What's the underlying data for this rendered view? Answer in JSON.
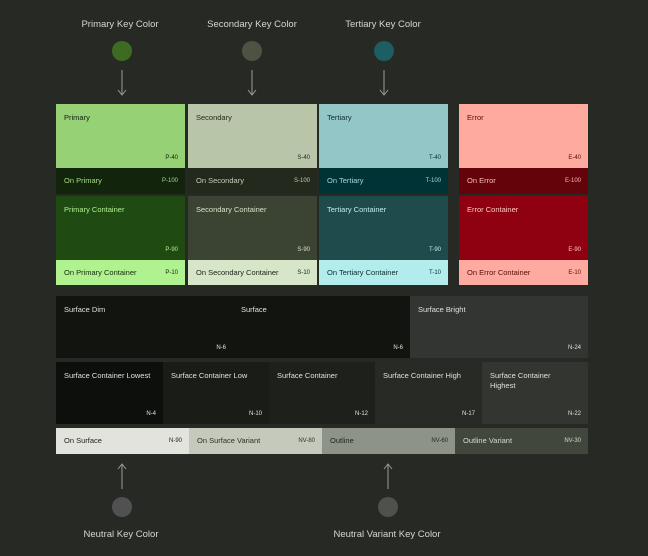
{
  "key_colors": {
    "primary": {
      "label": "Primary Key Color",
      "color": "#3e6b22"
    },
    "secondary": {
      "label": "Secondary Key Color",
      "color": "#4c5343"
    },
    "tertiary": {
      "label": "Tertiary Key Color",
      "color": "#1c5e61"
    },
    "neutral": {
      "label": "Neutral Key Color",
      "color": "#505150"
    },
    "neutral_variant": {
      "label": "Neutral Variant Key Color",
      "color": "#4f524c"
    }
  },
  "roles": {
    "primary": {
      "name": "Primary",
      "tone": "P-40",
      "bg": "#96d175",
      "fg": "#10200a"
    },
    "on_primary": {
      "name": "On Primary",
      "tone": "P-100",
      "bg": "#12240b",
      "fg": "#a5de84"
    },
    "primary_container": {
      "name": "Primary Container",
      "tone": "P-90",
      "bg": "#1f4a12",
      "fg": "#b2ee91"
    },
    "on_primary_container": {
      "name": "On Primary Container",
      "tone": "P-10",
      "bg": "#b0f190",
      "fg": "#14290b"
    },
    "secondary": {
      "name": "Secondary",
      "tone": "S-40",
      "bg": "#b8c5a9",
      "fg": "#23291d"
    },
    "on_secondary": {
      "name": "On Secondary",
      "tone": "S-100",
      "bg": "#23291d",
      "fg": "#c3cfb5"
    },
    "secondary_container": {
      "name": "Secondary Container",
      "tone": "S-90",
      "bg": "#3b4333",
      "fg": "#d6e3c8"
    },
    "on_secondary_container": {
      "name": "On Secondary Container",
      "tone": "S-10",
      "bg": "#d7e5c8",
      "fg": "#1b2114"
    },
    "tertiary": {
      "name": "Tertiary",
      "tone": "T-40",
      "bg": "#93c6c7",
      "fg": "#0b2e30"
    },
    "on_tertiary": {
      "name": "On Tertiary",
      "tone": "T-100",
      "bg": "#003336",
      "fg": "#a4d8d9"
    },
    "tertiary_container": {
      "name": "Tertiary Container",
      "tone": "T-90",
      "bg": "#1f4b4c",
      "fg": "#bfeced"
    },
    "on_tertiary_container": {
      "name": "On Tertiary Container",
      "tone": "T-10",
      "bg": "#b3eced",
      "fg": "#092b2d"
    },
    "error": {
      "name": "Error",
      "tone": "E-40",
      "bg": "#ffaa9f",
      "fg": "#5a0c08"
    },
    "on_error": {
      "name": "On Error",
      "tone": "E-100",
      "bg": "#65030b",
      "fg": "#ffbdb3"
    },
    "error_container": {
      "name": "Error Container",
      "tone": "E-90",
      "bg": "#8f0011",
      "fg": "#ffc9c2"
    },
    "on_error_container": {
      "name": "On Error Container",
      "tone": "E-10",
      "bg": "#ffaaa0",
      "fg": "#5a0c08"
    }
  },
  "surfaces": {
    "surface_dim": {
      "name": "Surface Dim",
      "tone": "N-6",
      "bg": "#121410",
      "fg": "#dfe3d8"
    },
    "surface": {
      "name": "Surface",
      "tone": "N-6",
      "bg": "#121410",
      "fg": "#dfe3d8"
    },
    "surface_bright": {
      "name": "Surface Bright",
      "tone": "N-24",
      "bg": "#333532",
      "fg": "#dfe3d8"
    },
    "container_lowest": {
      "name": "Surface Container Lowest",
      "tone": "N-4",
      "bg": "#0d0f0c",
      "fg": "#dfe3d8"
    },
    "container_low": {
      "name": "Surface Container Low",
      "tone": "N-10",
      "bg": "#1a1c18",
      "fg": "#dfe3d8"
    },
    "container": {
      "name": "Surface Container",
      "tone": "N-12",
      "bg": "#1e201c",
      "fg": "#dfe3d8"
    },
    "container_high": {
      "name": "Surface Container High",
      "tone": "N-17",
      "bg": "#282a26",
      "fg": "#dfe3d8"
    },
    "container_highest": {
      "name": "Surface Container Highest",
      "tone": "N-22",
      "bg": "#333531",
      "fg": "#dfe3d8"
    }
  },
  "bottom_row": {
    "on_surface": {
      "name": "On Surface",
      "tone": "N-90",
      "bg": "#e1e3dc",
      "fg": "#1c1e1a"
    },
    "on_surface_variant": {
      "name": "On Surface Variant",
      "tone": "NV-80",
      "bg": "#c4c9bb",
      "fg": "#2c3128"
    },
    "outline": {
      "name": "Outline",
      "tone": "NV-60",
      "bg": "#8e9388",
      "fg": "#1f231c"
    },
    "outline_variant": {
      "name": "Outline Variant",
      "tone": "NV-30",
      "bg": "#42473e",
      "fg": "#d6dbcf"
    }
  }
}
